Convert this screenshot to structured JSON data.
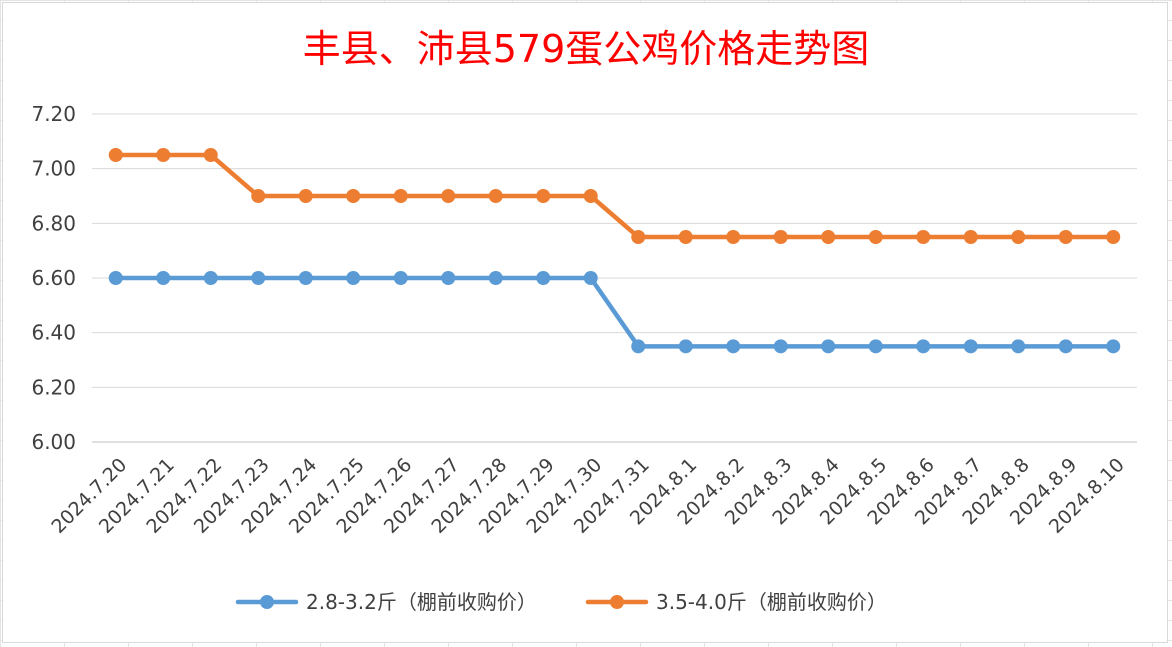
{
  "chart_data": {
    "type": "line",
    "title": "丰县、沛县579蛋公鸡价格走势图",
    "title_color": "#ff0000",
    "categories": [
      "2024.7.20",
      "2024.7.21",
      "2024.7.22",
      "2024.7.23",
      "2024.7.24",
      "2024.7.25",
      "2024.7.26",
      "2024.7.27",
      "2024.7.28",
      "2024.7.29",
      "2024.7.30",
      "2024.7.31",
      "2024.8.1",
      "2024.8.2",
      "2024.8.3",
      "2024.8.4",
      "2024.8.5",
      "2024.8.6",
      "2024.8.7",
      "2024.8.8",
      "2024.8.9",
      "2024.8.10"
    ],
    "series": [
      {
        "name": "2.8-3.2斤（棚前收购价）",
        "color": "#5b9bd5",
        "values": [
          6.6,
          6.6,
          6.6,
          6.6,
          6.6,
          6.6,
          6.6,
          6.6,
          6.6,
          6.6,
          6.6,
          6.35,
          6.35,
          6.35,
          6.35,
          6.35,
          6.35,
          6.35,
          6.35,
          6.35,
          6.35,
          6.35
        ]
      },
      {
        "name": "3.5-4.0斤（棚前收购价）",
        "color": "#ed7d31",
        "values": [
          7.05,
          7.05,
          7.05,
          6.9,
          6.9,
          6.9,
          6.9,
          6.9,
          6.9,
          6.9,
          6.9,
          6.75,
          6.75,
          6.75,
          6.75,
          6.75,
          6.75,
          6.75,
          6.75,
          6.75,
          6.75,
          6.75
        ]
      }
    ],
    "ylim": [
      6.0,
      7.2
    ],
    "yticks": [
      "6.00",
      "6.20",
      "6.40",
      "6.60",
      "6.80",
      "7.00",
      "7.20"
    ],
    "grid": true,
    "legend": "bottom",
    "xlabel": "",
    "ylabel": ""
  }
}
